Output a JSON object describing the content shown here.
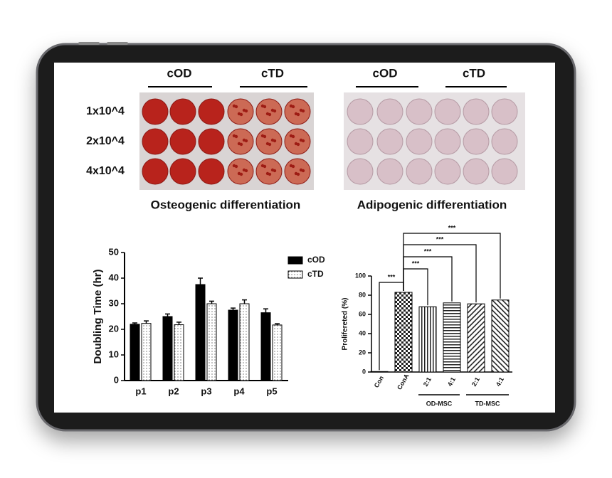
{
  "figure": {
    "plate_headers": [
      "cOD",
      "cTD",
      "cOD",
      "cTD"
    ],
    "row_labels": [
      "1x10^4",
      "2x10^4",
      "4x10^4"
    ],
    "captions": [
      "Osteogenic differentiation",
      "Adipogenic differentiation"
    ]
  },
  "chart_data": [
    {
      "type": "bar",
      "y_label": "Doubling Time (hr)",
      "categories": [
        "p1",
        "p2",
        "p3",
        "p4",
        "p5"
      ],
      "series": [
        {
          "name": "cOD",
          "color": "#000000",
          "values": [
            22,
            25,
            37.5,
            27.5,
            26.5
          ],
          "errors": [
            0.5,
            1,
            2.5,
            0.8,
            1.5
          ]
        },
        {
          "name": "cTD",
          "color": "#ffffff",
          "values": [
            22.3,
            21.8,
            30,
            30,
            21.7
          ],
          "errors": [
            1,
            1,
            1,
            1.5,
            0.5
          ]
        }
      ],
      "ylim": [
        0,
        50
      ],
      "yticks": [
        0,
        10,
        20,
        30,
        40,
        50
      ]
    },
    {
      "type": "bar",
      "y_label": "Prolifereted (%)",
      "categories": [
        "Con",
        "ConA",
        "2:1",
        "4:1",
        "2:1",
        "4:1"
      ],
      "groups": [
        "OD-MSC",
        "TD-MSC"
      ],
      "values": [
        0.5,
        83,
        68,
        72,
        71,
        75
      ],
      "color": "#000000",
      "annotations": [
        "***",
        "***",
        "***",
        "***",
        "***"
      ],
      "ylim": [
        0,
        100
      ],
      "yticks": [
        0,
        20,
        40,
        60,
        80,
        100
      ]
    }
  ]
}
